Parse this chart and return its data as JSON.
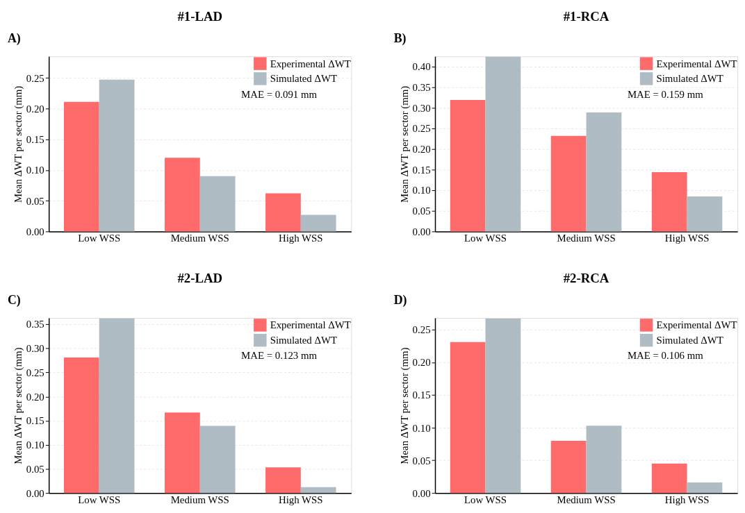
{
  "chart_data": [
    {
      "type": "bar",
      "title": "#1-LAD",
      "ylabel": "Mean ΔWT per sector (mm)",
      "annotations": [
        "A)",
        "MAE = 0.091 mm"
      ],
      "categories": [
        "Low WSS",
        "Medium WSS",
        "High WSS"
      ],
      "series": [
        {
          "name": "Experimental ΔWT",
          "color": "#ff6b6b",
          "values": [
            0.211,
            0.12,
            0.062
          ]
        },
        {
          "name": "Simulated ΔWT",
          "color": "#b0bcc4",
          "values": [
            0.247,
            0.09,
            0.027
          ]
        }
      ],
      "ylim": [
        0,
        0.285
      ],
      "yticks": [
        {
          "value": 0,
          "label": "0.00"
        },
        {
          "value": 0.05,
          "label": "0.05"
        },
        {
          "value": 0.1,
          "label": "0.10"
        },
        {
          "value": 0.15,
          "label": "0.15"
        },
        {
          "value": 0.2,
          "label": "0.20"
        },
        {
          "value": 0.25,
          "label": "0.25"
        }
      ],
      "grid": "y",
      "legend": "top right"
    },
    {
      "type": "bar",
      "title": "#1-RCA",
      "ylabel": "Mean ΔWT per sector (mm)",
      "annotations": [
        "B)",
        "MAE = 0.159 mm"
      ],
      "categories": [
        "Low WSS",
        "Medium WSS",
        "High WSS"
      ],
      "series": [
        {
          "name": "Experimental ΔWT",
          "color": "#ff6b6b",
          "values": [
            0.319,
            0.232,
            0.144
          ]
        },
        {
          "name": "Simulated ΔWT",
          "color": "#b0bcc4",
          "values": [
            0.424,
            0.289,
            0.085
          ]
        }
      ],
      "ylim": [
        0,
        0.425
      ],
      "yticks": [
        {
          "value": 0,
          "label": "0.00"
        },
        {
          "value": 0.05,
          "label": "0.05"
        },
        {
          "value": 0.1,
          "label": "0.10"
        },
        {
          "value": 0.15,
          "label": "0.15"
        },
        {
          "value": 0.2,
          "label": "0.20"
        },
        {
          "value": 0.25,
          "label": "0.25"
        },
        {
          "value": 0.3,
          "label": "0.30"
        },
        {
          "value": 0.35,
          "label": "0.35"
        },
        {
          "value": 0.4,
          "label": "0.40"
        }
      ],
      "grid": "y",
      "legend": "top right"
    },
    {
      "type": "bar",
      "title": "#2-LAD",
      "ylabel": "Mean ΔWT per sector (mm)",
      "annotations": [
        "C)",
        "MAE = 0.123 mm"
      ],
      "categories": [
        "Low WSS",
        "Medium WSS",
        "High WSS"
      ],
      "series": [
        {
          "name": "Experimental ΔWT",
          "color": "#ff6b6b",
          "values": [
            0.281,
            0.167,
            0.053
          ]
        },
        {
          "name": "Simulated ΔWT",
          "color": "#b0bcc4",
          "values": [
            0.362,
            0.139,
            0.012
          ]
        }
      ],
      "ylim": [
        0,
        0.363
      ],
      "yticks": [
        {
          "value": 0,
          "label": "0.00"
        },
        {
          "value": 0.05,
          "label": "0.05"
        },
        {
          "value": 0.1,
          "label": "0.10"
        },
        {
          "value": 0.15,
          "label": "0.15"
        },
        {
          "value": 0.2,
          "label": "0.20"
        },
        {
          "value": 0.25,
          "label": "0.25"
        },
        {
          "value": 0.3,
          "label": "0.30"
        },
        {
          "value": 0.35,
          "label": "0.35"
        }
      ],
      "grid": "y",
      "legend": "top right"
    },
    {
      "type": "bar",
      "title": "#2-RCA",
      "ylabel": "Mean ΔWT per sector (mm)",
      "annotations": [
        "D)",
        "MAE = 0.106 mm"
      ],
      "categories": [
        "Low WSS",
        "Medium WSS",
        "High WSS"
      ],
      "series": [
        {
          "name": "Experimental ΔWT",
          "color": "#ff6b6b",
          "values": [
            0.231,
            0.08,
            0.045
          ]
        },
        {
          "name": "Simulated ΔWT",
          "color": "#b0bcc4",
          "values": [
            0.267,
            0.103,
            0.016
          ]
        }
      ],
      "ylim": [
        0,
        0.268
      ],
      "yticks": [
        {
          "value": 0,
          "label": "0.00"
        },
        {
          "value": 0.05,
          "label": "0.05"
        },
        {
          "value": 0.1,
          "label": "0.10"
        },
        {
          "value": 0.15,
          "label": "0.15"
        },
        {
          "value": 0.2,
          "label": "0.20"
        },
        {
          "value": 0.25,
          "label": "0.25"
        }
      ],
      "grid": "y",
      "legend": "top right"
    }
  ]
}
